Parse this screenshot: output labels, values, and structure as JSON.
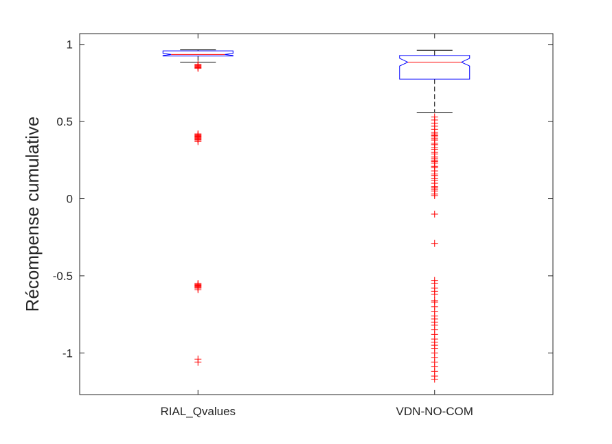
{
  "chart_data": {
    "type": "box",
    "ylabel": "Récompense cumulative",
    "xlabel": "",
    "title": "",
    "ylim": [
      -1.27,
      1.07
    ],
    "yticks": [
      1,
      0.5,
      0,
      -0.5,
      -1
    ],
    "ytick_labels": [
      "1",
      "0.5",
      "0",
      "-0.5",
      "-1"
    ],
    "grid": false,
    "legend": "none",
    "categories": [
      "RIAL_Qvalues",
      "VDN-NO-COM"
    ],
    "boxes": [
      {
        "category": "RIAL_Qvalues",
        "whisker_low": 0.885,
        "q1": 0.925,
        "median": 0.935,
        "q3": 0.958,
        "whisker_high": 0.965,
        "notch_low": 0.928,
        "notch_high": 0.942,
        "outliers": [
          0.87,
          0.865,
          0.86,
          0.855,
          0.85,
          0.845,
          0.42,
          0.415,
          0.41,
          0.405,
          0.4,
          0.395,
          0.39,
          0.385,
          0.38,
          0.37,
          -0.55,
          -0.555,
          -0.56,
          -0.565,
          -0.57,
          -0.575,
          -0.58,
          -0.59,
          -1.04,
          -1.06
        ]
      },
      {
        "category": "VDN-NO-COM",
        "whisker_low": 0.56,
        "q1": 0.775,
        "median": 0.885,
        "q3": 0.928,
        "whisker_high": 0.962,
        "notch_low": 0.86,
        "notch_high": 0.91,
        "outliers": [
          0.53,
          0.51,
          0.49,
          0.47,
          0.45,
          0.43,
          0.42,
          0.41,
          0.4,
          0.39,
          0.38,
          0.36,
          0.35,
          0.33,
          0.32,
          0.3,
          0.29,
          0.27,
          0.26,
          0.25,
          0.24,
          0.23,
          0.21,
          0.2,
          0.18,
          0.16,
          0.15,
          0.13,
          0.12,
          0.1,
          0.08,
          0.07,
          0.06,
          0.05,
          0.03,
          0.02,
          -0.1,
          -0.29,
          -0.53,
          -0.55,
          -0.58,
          -0.6,
          -0.62,
          -0.66,
          -0.67,
          -0.7,
          -0.73,
          -0.76,
          -0.78,
          -0.8,
          -0.82,
          -0.85,
          -0.88,
          -0.91,
          -0.93,
          -0.95,
          -0.97,
          -1.0,
          -1.03,
          -1.06,
          -1.09,
          -1.12,
          -1.15,
          -1.17
        ]
      }
    ],
    "colors": {
      "box": "#0000ff",
      "median": "#ff0000",
      "whisker": "#000000",
      "outlier": "#ff0000",
      "axis": "#262626"
    }
  }
}
